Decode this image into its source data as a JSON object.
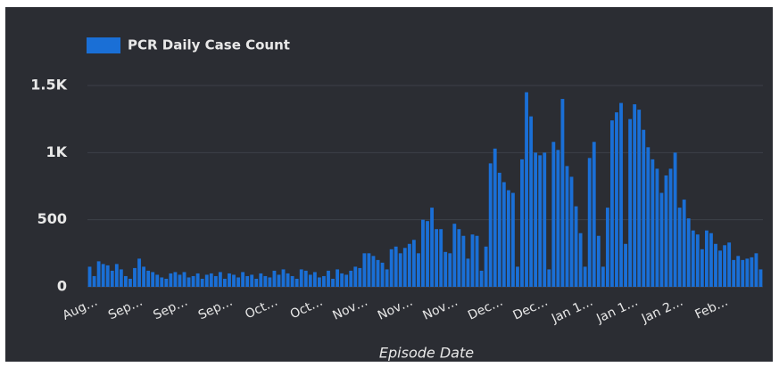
{
  "chart_data": {
    "type": "bar",
    "legend": "PCR Daily Case Count",
    "x_label": "Episode Date",
    "color": "#1a6fd6",
    "grid": true,
    "ylim": [
      0,
      1500
    ],
    "yticks": [
      0,
      500,
      {
        "value": 1000,
        "label": "1K"
      },
      {
        "value": 1500,
        "label": "1.5K"
      }
    ],
    "categories": [
      "Aug…",
      null,
      null,
      null,
      null,
      null,
      null,
      null,
      null,
      null,
      "Sep…",
      null,
      null,
      null,
      null,
      null,
      null,
      null,
      null,
      null,
      "Sep…",
      null,
      null,
      null,
      null,
      null,
      null,
      null,
      null,
      null,
      "Sep…",
      null,
      null,
      null,
      null,
      null,
      null,
      null,
      null,
      null,
      "Oct…",
      null,
      null,
      null,
      null,
      null,
      null,
      null,
      null,
      null,
      "Oct…",
      null,
      null,
      null,
      null,
      null,
      null,
      null,
      null,
      null,
      "Nov…",
      null,
      null,
      null,
      null,
      null,
      null,
      null,
      null,
      null,
      "Nov…",
      null,
      null,
      null,
      null,
      null,
      null,
      null,
      null,
      null,
      "Nov…",
      null,
      null,
      null,
      null,
      null,
      null,
      null,
      null,
      null,
      "Dec…",
      null,
      null,
      null,
      null,
      null,
      null,
      null,
      null,
      null,
      "Dec…",
      null,
      null,
      null,
      null,
      null,
      null,
      null,
      null,
      null,
      "Jan 1…",
      null,
      null,
      null,
      null,
      null,
      null,
      null,
      null,
      null,
      "Jan 1…",
      null,
      null,
      null,
      null,
      null,
      null,
      null,
      null,
      null,
      "Jan 2…",
      null,
      null,
      null,
      null,
      null,
      null,
      null,
      null,
      null,
      "Feb…",
      null,
      null,
      null,
      null,
      null,
      null,
      null,
      null,
      null
    ],
    "values": [
      150,
      80,
      190,
      170,
      160,
      120,
      170,
      130,
      80,
      60,
      140,
      210,
      150,
      120,
      110,
      90,
      70,
      60,
      100,
      110,
      90,
      110,
      70,
      80,
      100,
      60,
      90,
      100,
      80,
      110,
      60,
      100,
      90,
      70,
      110,
      80,
      90,
      60,
      100,
      80,
      70,
      120,
      90,
      130,
      100,
      80,
      60,
      130,
      120,
      90,
      110,
      70,
      80,
      120,
      60,
      130,
      100,
      90,
      120,
      150,
      140,
      250,
      250,
      230,
      200,
      180,
      130,
      280,
      300,
      250,
      290,
      320,
      350,
      250,
      500,
      490,
      590,
      430,
      430,
      260,
      250,
      470,
      430,
      380,
      210,
      390,
      380,
      120,
      300,
      920,
      1030,
      850,
      780,
      720,
      700,
      150,
      950,
      1450,
      1270,
      1000,
      980,
      1000,
      130,
      1080,
      1020,
      1400,
      900,
      820,
      600,
      400,
      150,
      960,
      1080,
      380,
      150,
      590,
      1240,
      1300,
      1370,
      320,
      1250,
      1360,
      1320,
      1170,
      1040,
      950,
      880,
      700,
      830,
      880,
      1000,
      590,
      650,
      510,
      420,
      390,
      280,
      420,
      400,
      320,
      270,
      310,
      330,
      200,
      230,
      200,
      210,
      220,
      250,
      130
    ]
  }
}
